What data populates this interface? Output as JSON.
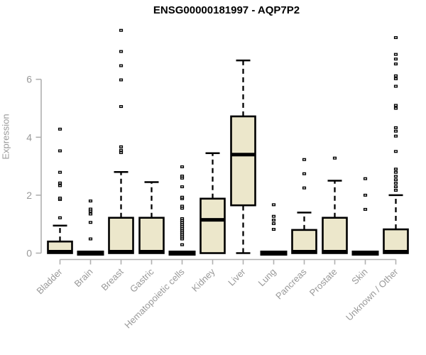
{
  "chart_data": {
    "type": "boxplot",
    "title": "ENSG00000181997 - AQP7P2",
    "xlabel": "",
    "ylabel": "Expression",
    "ylim": [
      0,
      7.8
    ],
    "yticks": [
      0,
      2,
      4,
      6
    ],
    "grid": false,
    "legend": null,
    "categories": [
      "Bladder",
      "Brain",
      "Breast",
      "Gastric",
      "Hematopoietic cells",
      "Kidney",
      "Liver",
      "Lung",
      "Pancreas",
      "Prostate",
      "Skin",
      "Unknown / Other"
    ],
    "boxes": [
      {
        "category": "Bladder",
        "whisker_low": 0,
        "q1": 0,
        "median": 0.05,
        "q3": 0.4,
        "whisker_high": 0.95,
        "outliers": [
          1.22,
          1.85,
          1.9,
          2.33,
          2.42,
          2.79,
          3.53,
          4.28
        ]
      },
      {
        "category": "Brain",
        "whisker_low": 0,
        "q1": 0,
        "median": 0,
        "q3": 0,
        "whisker_high": 0,
        "outliers": [
          0.49,
          1.06,
          1.35,
          1.45,
          1.52,
          1.8
        ]
      },
      {
        "category": "Breast",
        "whisker_low": 0,
        "q1": 0,
        "median": 0.05,
        "q3": 1.22,
        "whisker_high": 2.8,
        "outliers": [
          3.47,
          3.55,
          3.67,
          5.06,
          5.98,
          6.47,
          6.96,
          7.69
        ]
      },
      {
        "category": "Gastric",
        "whisker_low": 0,
        "q1": 0,
        "median": 0.05,
        "q3": 1.22,
        "whisker_high": 2.45,
        "outliers": []
      },
      {
        "category": "Hematopoietic cells",
        "whisker_low": 0,
        "q1": 0,
        "median": 0,
        "q3": 0,
        "whisker_high": 0,
        "outliers": [
          0.29,
          0.49,
          0.56,
          0.63,
          0.7,
          0.77,
          0.84,
          0.91,
          0.98,
          1.05,
          1.12,
          1.19,
          1.55,
          1.62,
          1.88,
          1.93,
          2.29,
          2.59,
          2.66,
          2.98
        ]
      },
      {
        "category": "Kidney",
        "whisker_low": 0,
        "q1": 0,
        "median": 1.15,
        "q3": 1.88,
        "whisker_high": 3.45,
        "outliers": []
      },
      {
        "category": "Liver",
        "whisker_low": 0,
        "q1": 1.65,
        "median": 3.4,
        "q3": 4.72,
        "whisker_high": 6.65,
        "outliers": []
      },
      {
        "category": "Lung",
        "whisker_low": 0,
        "q1": 0,
        "median": 0,
        "q3": 0,
        "whisker_high": 0,
        "outliers": [
          0.82,
          1.02,
          1.14,
          1.27,
          1.67
        ]
      },
      {
        "category": "Pancreas",
        "whisker_low": 0,
        "q1": 0,
        "median": 0.05,
        "q3": 0.8,
        "whisker_high": 1.4,
        "outliers": [
          2.25,
          2.74,
          3.23
        ]
      },
      {
        "category": "Prostate",
        "whisker_low": 0,
        "q1": 0,
        "median": 0.05,
        "q3": 1.22,
        "whisker_high": 2.5,
        "outliers": [
          3.28
        ]
      },
      {
        "category": "Skin",
        "whisker_low": 0,
        "q1": 0,
        "median": 0,
        "q3": 0,
        "whisker_high": 0,
        "outliers": [
          1.51,
          2.0,
          2.57
        ]
      },
      {
        "category": "Unknown / Other",
        "whisker_low": 0,
        "q1": 0,
        "median": 0.05,
        "q3": 0.82,
        "whisker_high": 2.0,
        "outliers": [
          2.17,
          2.29,
          2.41,
          2.53,
          2.65,
          2.79,
          2.9,
          3.51,
          4.04,
          4.21,
          4.33,
          5.0,
          5.1,
          5.76,
          6.02,
          6.12,
          6.53,
          6.7,
          6.86,
          7.44
        ]
      }
    ],
    "colors": {
      "box_fill": "#ECE7CB",
      "box_border": "#000000",
      "median": "#000000",
      "axis_line": "#B0B0B0",
      "tick_label": "#999999",
      "title": "#000000",
      "background": "#FFFFFF"
    }
  }
}
